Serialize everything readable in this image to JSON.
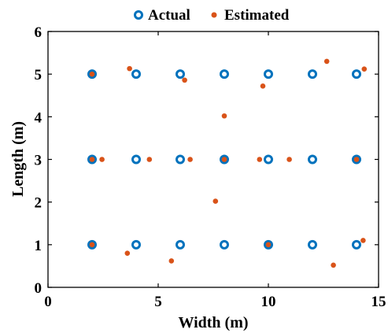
{
  "chart_data": {
    "type": "scatter",
    "xlabel": "Width (m)",
    "ylabel": "Length (m)",
    "xlim": [
      0,
      15
    ],
    "ylim": [
      0,
      6
    ],
    "xticks": [
      "0",
      "5",
      "10",
      "15"
    ],
    "yticks": [
      "0",
      "1",
      "2",
      "3",
      "4",
      "5",
      "6"
    ],
    "grid": false,
    "legend_position": "top",
    "series": [
      {
        "name": "Actual",
        "marker": "ring",
        "color": "#0072BD",
        "points": [
          [
            2,
            5
          ],
          [
            4,
            5
          ],
          [
            6,
            5
          ],
          [
            8,
            5
          ],
          [
            10,
            5
          ],
          [
            12,
            5
          ],
          [
            14,
            5
          ],
          [
            2,
            3
          ],
          [
            4,
            3
          ],
          [
            6,
            3
          ],
          [
            8,
            3
          ],
          [
            10,
            3
          ],
          [
            12,
            3
          ],
          [
            14,
            3
          ],
          [
            2,
            1
          ],
          [
            4,
            1
          ],
          [
            6,
            1
          ],
          [
            8,
            1
          ],
          [
            10,
            1
          ],
          [
            12,
            1
          ],
          [
            14,
            1
          ]
        ]
      },
      {
        "name": "Estimated",
        "marker": "dot",
        "color": "#D95319",
        "points": [
          [
            2.0,
            5.0
          ],
          [
            3.7,
            5.13
          ],
          [
            6.2,
            4.86
          ],
          [
            9.75,
            4.72
          ],
          [
            12.65,
            5.3
          ],
          [
            14.35,
            5.12
          ],
          [
            8.0,
            4.02
          ],
          [
            2.0,
            3.0
          ],
          [
            2.45,
            3.0
          ],
          [
            4.6,
            3.0
          ],
          [
            6.45,
            3.0
          ],
          [
            8.0,
            3.0
          ],
          [
            9.6,
            3.0
          ],
          [
            10.95,
            3.0
          ],
          [
            14.0,
            3.0
          ],
          [
            7.6,
            2.02
          ],
          [
            2.0,
            1.0
          ],
          [
            3.6,
            0.8
          ],
          [
            5.6,
            0.62
          ],
          [
            10.0,
            1.0
          ],
          [
            12.95,
            0.52
          ],
          [
            14.3,
            1.1
          ]
        ]
      }
    ]
  }
}
